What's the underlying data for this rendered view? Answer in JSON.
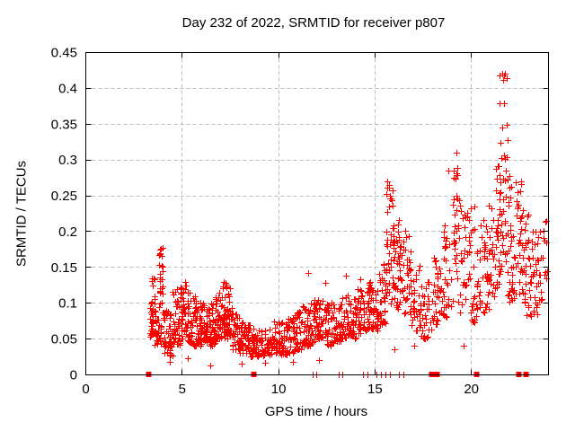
{
  "header": {
    "title": "Day 232 of 2022, SRMTID for receiver p807"
  },
  "chart_data": {
    "type": "scatter",
    "title": "Day 232 of 2022, SRMTID for receiver p807",
    "xlabel": "GPS time / hours",
    "ylabel": "SRMTID / TECUs",
    "xlim": [
      0,
      24
    ],
    "ylim": [
      0,
      0.45
    ],
    "xticks": [
      0,
      5,
      10,
      15,
      20
    ],
    "xtick_labels": [
      "0",
      "5",
      "10",
      "15",
      "20"
    ],
    "yticks": [
      0,
      0.05,
      0.1,
      0.15,
      0.2,
      0.25,
      0.3,
      0.35,
      0.4,
      0.45
    ],
    "ytick_labels": [
      "0",
      "0.05",
      "0.1",
      "0.15",
      "0.2",
      "0.25",
      "0.3",
      "0.35",
      "0.4",
      "0.45"
    ],
    "grid": true,
    "legend": "none",
    "marker": "plus",
    "marker_color": "#ff0000",
    "grid_color": "#bbbbbb",
    "border_color": "#000000",
    "text_color": "#000000",
    "background_color": "#ffffff",
    "seed": 20220807,
    "bins_format": "[t_start_hours, t_end_hours, value_min_TECU, value_max_TECU, n_points, low_bias_exponent] - envelope of the dense + marker cloud read from the plot",
    "density_bins": [
      [
        3.35,
        3.6,
        0.05,
        0.135,
        38,
        1.2
      ],
      [
        3.6,
        3.8,
        0.04,
        0.11,
        20,
        1.5
      ],
      [
        3.8,
        4.05,
        0.04,
        0.18,
        40,
        1.2
      ],
      [
        4.05,
        4.35,
        0.03,
        0.09,
        24,
        1.5
      ],
      [
        4.35,
        4.65,
        0.025,
        0.085,
        26,
        1.5
      ],
      [
        4.65,
        4.95,
        0.04,
        0.125,
        30,
        1.4
      ],
      [
        4.95,
        5.25,
        0.05,
        0.13,
        32,
        1.4
      ],
      [
        5.25,
        5.55,
        0.045,
        0.115,
        32,
        1.5
      ],
      [
        5.55,
        5.85,
        0.04,
        0.11,
        32,
        1.5
      ],
      [
        5.85,
        6.15,
        0.04,
        0.1,
        32,
        1.5
      ],
      [
        6.15,
        6.45,
        0.045,
        0.095,
        32,
        1.5
      ],
      [
        6.45,
        6.75,
        0.04,
        0.1,
        32,
        1.5
      ],
      [
        6.75,
        7.05,
        0.05,
        0.115,
        34,
        1.4
      ],
      [
        7.05,
        7.35,
        0.05,
        0.13,
        36,
        1.3
      ],
      [
        7.35,
        7.6,
        0.05,
        0.12,
        28,
        1.4
      ],
      [
        7.6,
        7.95,
        0.035,
        0.085,
        28,
        1.5
      ],
      [
        7.95,
        8.25,
        0.03,
        0.075,
        28,
        1.5
      ],
      [
        8.25,
        8.55,
        0.028,
        0.07,
        28,
        1.5
      ],
      [
        8.55,
        8.85,
        0.025,
        0.068,
        30,
        1.5
      ],
      [
        8.85,
        9.25,
        0.025,
        0.062,
        28,
        1.5
      ],
      [
        9.25,
        9.65,
        0.028,
        0.068,
        28,
        1.5
      ],
      [
        9.65,
        10.05,
        0.03,
        0.075,
        30,
        1.5
      ],
      [
        10.05,
        10.45,
        0.028,
        0.075,
        32,
        1.5
      ],
      [
        10.45,
        10.85,
        0.03,
        0.08,
        32,
        1.5
      ],
      [
        10.85,
        11.25,
        0.035,
        0.09,
        32,
        1.5
      ],
      [
        11.25,
        11.65,
        0.04,
        0.1,
        32,
        1.5
      ],
      [
        11.65,
        12.05,
        0.045,
        0.105,
        32,
        1.5
      ],
      [
        12.05,
        12.45,
        0.05,
        0.11,
        32,
        1.5
      ],
      [
        12.45,
        12.85,
        0.04,
        0.1,
        32,
        1.5
      ],
      [
        12.85,
        13.25,
        0.045,
        0.1,
        32,
        1.5
      ],
      [
        13.25,
        13.65,
        0.05,
        0.115,
        32,
        1.5
      ],
      [
        13.65,
        14.05,
        0.05,
        0.105,
        32,
        1.5
      ],
      [
        14.05,
        14.45,
        0.055,
        0.12,
        32,
        1.5
      ],
      [
        14.45,
        14.85,
        0.06,
        0.13,
        32,
        1.5
      ],
      [
        14.85,
        15.25,
        0.06,
        0.125,
        32,
        1.5
      ],
      [
        15.25,
        15.6,
        0.07,
        0.155,
        32,
        1.4
      ],
      [
        15.6,
        16.0,
        0.09,
        0.27,
        46,
        1.05
      ],
      [
        16.0,
        16.4,
        0.08,
        0.22,
        34,
        1.25
      ],
      [
        16.4,
        16.9,
        0.08,
        0.21,
        36,
        1.25
      ],
      [
        16.9,
        17.4,
        0.06,
        0.16,
        30,
        1.4
      ],
      [
        17.4,
        18.0,
        0.05,
        0.13,
        34,
        1.5
      ],
      [
        18.0,
        18.5,
        0.07,
        0.17,
        32,
        1.35
      ],
      [
        18.5,
        19.0,
        0.08,
        0.22,
        30,
        1.25
      ],
      [
        19.0,
        19.4,
        0.1,
        0.31,
        32,
        1.05
      ],
      [
        19.4,
        19.9,
        0.08,
        0.24,
        28,
        1.35
      ],
      [
        19.9,
        20.3,
        0.07,
        0.24,
        24,
        1.4
      ],
      [
        20.3,
        20.8,
        0.08,
        0.22,
        32,
        1.3
      ],
      [
        20.8,
        21.2,
        0.09,
        0.25,
        30,
        1.25
      ],
      [
        21.2,
        21.5,
        0.12,
        0.3,
        28,
        1.15
      ],
      [
        21.5,
        21.9,
        0.14,
        0.42,
        42,
        1.0
      ],
      [
        21.9,
        22.3,
        0.1,
        0.3,
        34,
        1.2
      ],
      [
        22.3,
        22.7,
        0.1,
        0.27,
        32,
        1.2
      ],
      [
        22.7,
        23.1,
        0.08,
        0.24,
        30,
        1.3
      ],
      [
        23.1,
        23.5,
        0.08,
        0.2,
        26,
        1.35
      ],
      [
        23.5,
        23.95,
        0.09,
        0.23,
        20,
        1.3
      ]
    ],
    "outlier_points": [
      [
        4.4,
        0.018
      ],
      [
        4.5,
        0.115
      ],
      [
        4.55,
        0.112
      ],
      [
        5.3,
        0.022
      ],
      [
        6.5,
        0.012
      ],
      [
        8.1,
        0.015
      ],
      [
        9.3,
        0.016
      ],
      [
        10.75,
        0.018
      ],
      [
        11.55,
        0.142
      ],
      [
        12.1,
        0.02
      ],
      [
        12.45,
        0.128
      ],
      [
        13.5,
        0.138
      ],
      [
        14.25,
        0.133
      ],
      [
        16.05,
        0.035
      ],
      [
        17.05,
        0.04
      ],
      [
        18.85,
        0.285
      ],
      [
        19.6,
        0.04
      ]
    ],
    "baseline_plus_hours": [
      11.77,
      11.98,
      13.12,
      13.33,
      14.42,
      14.63,
      15.12,
      15.32,
      15.55,
      15.78,
      16.28,
      16.5
    ],
    "baseline_square_hours": [
      3.27,
      8.72,
      17.95,
      18.2,
      20.28,
      22.45,
      22.82
    ],
    "notable_features": "Red + scatter from ~3.35 h to ~24 h; quiet 0.03-0.07 around 8-10 h; spikes to 0.18 at 3.9 h, 0.27 at 15.8 h, 0.31 at 19.2 h; maximum 0.42 near 21.7 h; red filled squares sit on the y=0 axis marking data-gap times."
  }
}
